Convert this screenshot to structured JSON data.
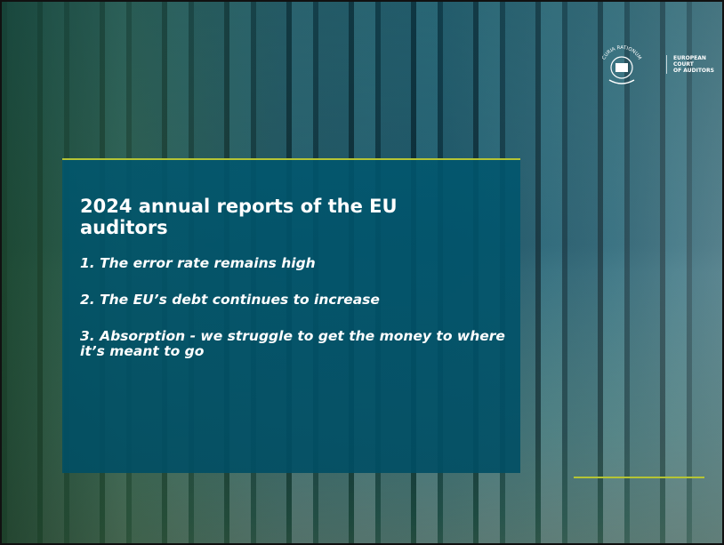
{
  "logo": {
    "motto": "CURIA RATIONUM",
    "name_lines": [
      "EUROPEAN",
      "COURT",
      "OF AUDITORS"
    ]
  },
  "slide": {
    "title": "2024 annual reports of the EU auditors",
    "points": [
      "1. The error rate remains high",
      "2. The EU’s debt continues to increase",
      "3. Absorption - we struggle to get the money to where it’s meant to go"
    ]
  }
}
